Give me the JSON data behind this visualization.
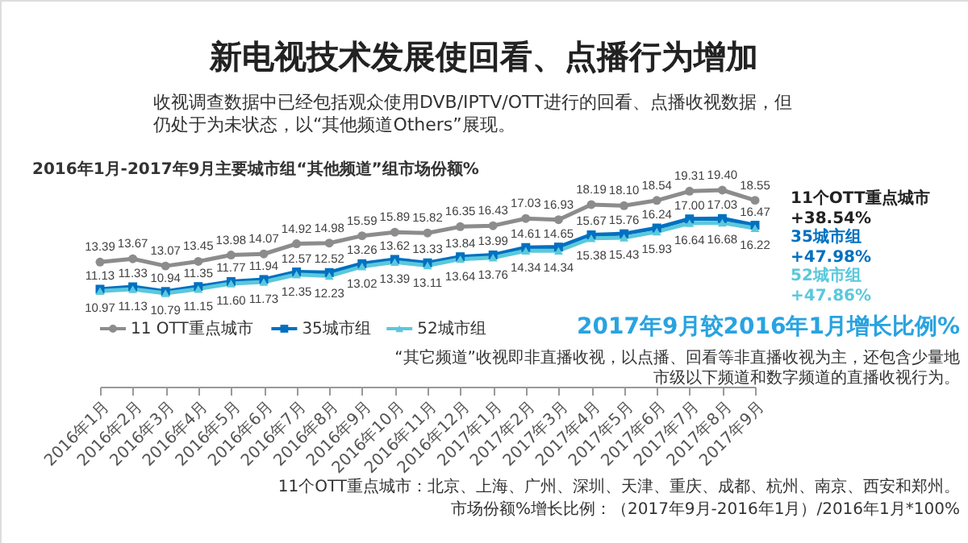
{
  "chart_data": {
    "type": "line",
    "title": "新电视技术发展使回看、点播行为增加",
    "subtitle": "收视调查数据中已经包括观众使用DVB/IPTV/OTT进行的回看、点播收视数据，但仍处于为未状态，以“其他频道Others”展现。",
    "categories": [
      "2016年1月",
      "2016年2月",
      "2016年3月",
      "2016年4月",
      "2016年5月",
      "2016年6月",
      "2016年7月",
      "2016年8月",
      "2016年9月",
      "2016年10月",
      "2016年11月",
      "2016年12月",
      "2017年1月",
      "2017年2月",
      "2017年3月",
      "2017年4月",
      "2017年5月",
      "2017年6月",
      "2017年7月",
      "2017年8月",
      "2017年9月"
    ],
    "series": [
      {
        "name": "11 OTT重点城市",
        "color": "#8c8c8c",
        "marker": "circle",
        "values": [
          13.39,
          13.67,
          13.07,
          13.45,
          13.98,
          14.07,
          14.92,
          14.98,
          15.59,
          15.89,
          15.82,
          16.35,
          16.43,
          17.03,
          16.93,
          18.19,
          18.1,
          18.54,
          19.31,
          19.4,
          18.55
        ],
        "value_labels": [
          "13.39",
          "13.67",
          "13.07",
          "13.45",
          "13.98",
          "14.07",
          "14.92",
          "14.98",
          "15.59",
          "15.89",
          "15.82",
          "16.35",
          "16.43",
          "17.03",
          "16.93",
          "18.19",
          "18.10",
          "18.54",
          "19.31",
          "19.40",
          "18.55"
        ]
      },
      {
        "name": "35城市组",
        "color": "#0070c0",
        "marker": "square",
        "values": [
          11.13,
          11.33,
          10.94,
          11.35,
          11.77,
          11.94,
          12.57,
          12.52,
          13.26,
          13.62,
          13.33,
          13.84,
          13.99,
          14.61,
          14.65,
          15.67,
          15.76,
          16.24,
          17.0,
          17.03,
          16.47
        ],
        "value_labels": [
          "11.13",
          "11.33",
          "10.94",
          "11.35",
          "11.77",
          "11.94",
          "12.57",
          "12.52",
          "13.26",
          "13.62",
          "13.33",
          "13.84",
          "13.99",
          "14.61",
          "14.65",
          "15.67",
          "15.76",
          "16.24",
          "17.00",
          "17.03",
          "16.47"
        ]
      },
      {
        "name": "52城市组",
        "color": "#5bc8dc",
        "marker": "triangle",
        "values": [
          10.97,
          11.13,
          10.79,
          11.15,
          11.6,
          11.73,
          12.35,
          12.23,
          13.02,
          13.39,
          13.11,
          13.64,
          13.76,
          14.34,
          14.34,
          15.38,
          15.43,
          15.93,
          16.64,
          16.68,
          16.22
        ],
        "value_labels": [
          "10.97",
          "11.13",
          "10.79",
          "11.15",
          "11.60",
          "11.73",
          "12.35",
          "12.23",
          "13.02",
          "13.39",
          "13.11",
          "13.64",
          "13.76",
          "14.34",
          "14.34",
          "15.38",
          "15.43",
          "15.93",
          "16.64",
          "16.68",
          "16.22"
        ]
      }
    ],
    "legend": "bottom left",
    "grid": false,
    "annotations": [
      "2016年1月-2017年9月主要城市组“其他频道”组市场份额%",
      "11个OTT重点城市\n+38.54%",
      "35城市组\n+47.98%",
      "52城市组\n+47.86%",
      "2017年9月较2016年1月增长比例%",
      "“其它频道”收视即非直播收视，以点播、回看等非直播收视为主，还包含少量地市级以下频道和数字频道的直播收视行为。",
      "11个OTT重点城市：北京、上海、广州、深圳、天津、重庆、成都、杭州、南京、西安和郑州。",
      "市场份额%增长比例：（2017年9月-2016年1月）/2016年1月*100%"
    ]
  }
}
